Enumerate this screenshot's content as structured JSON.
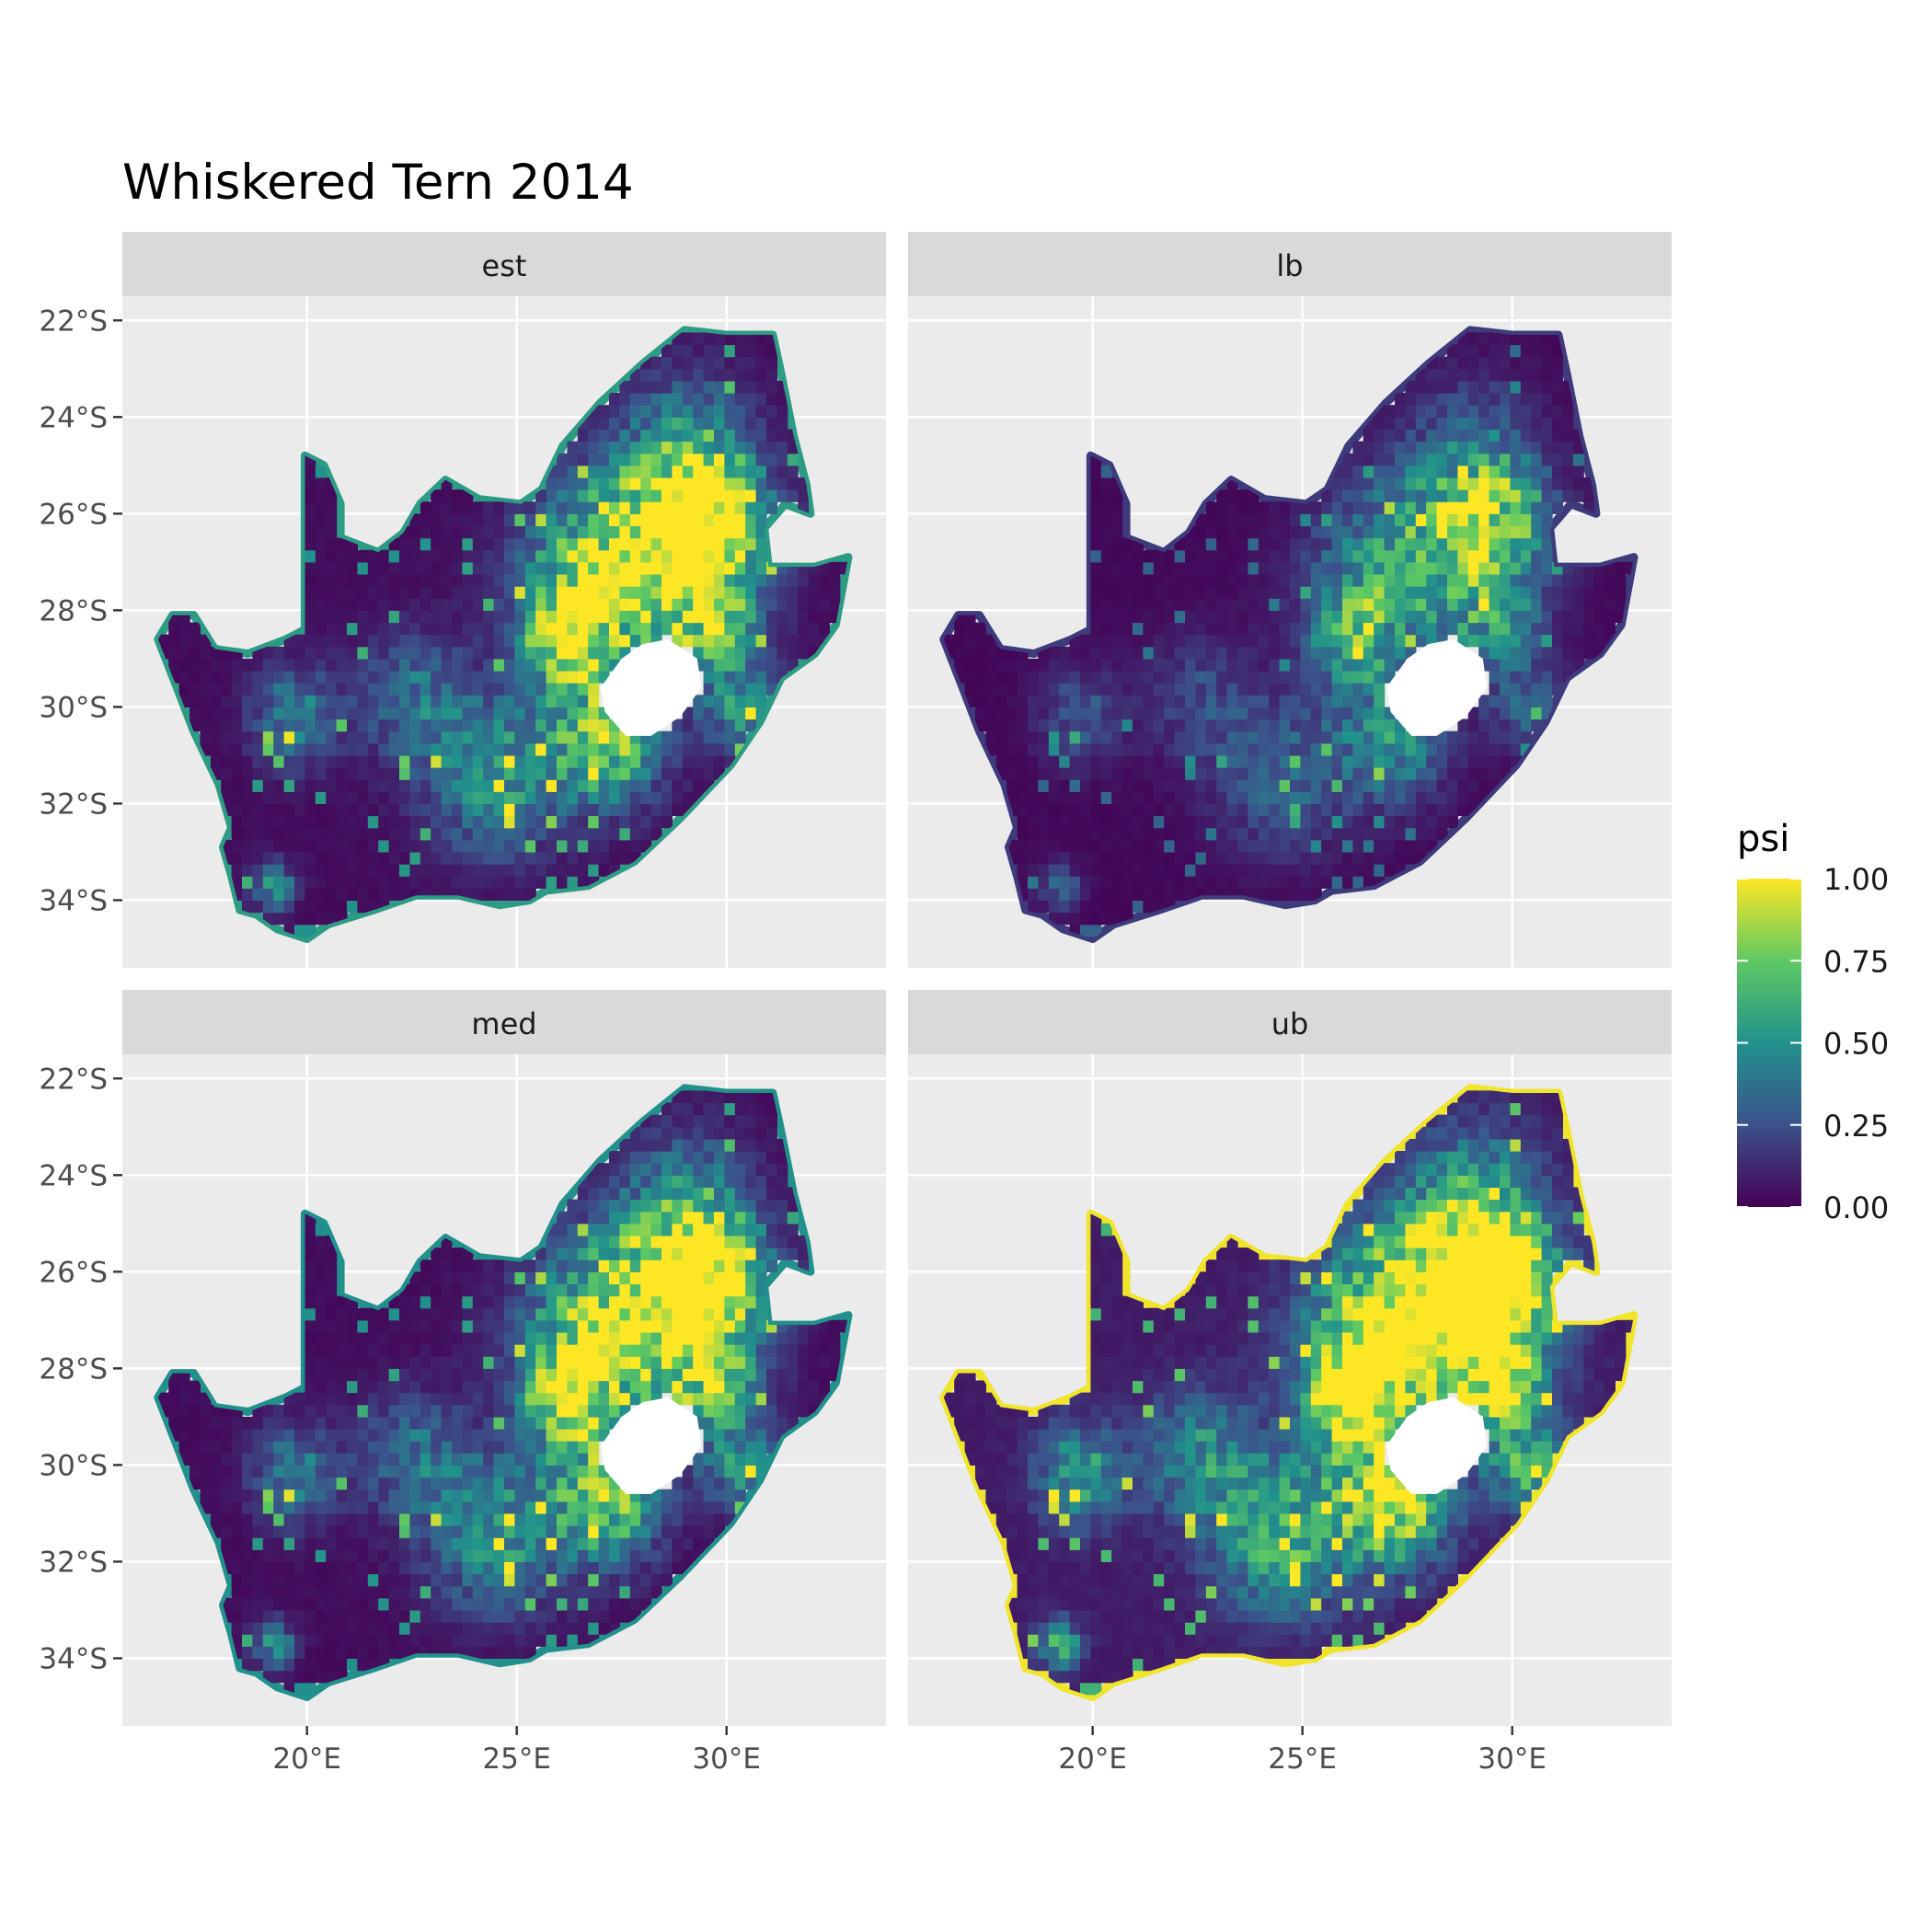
{
  "title": "Whiskered Tern 2014",
  "panels": [
    {
      "label": "est",
      "layer": "est"
    },
    {
      "label": "lb",
      "layer": "lb"
    },
    {
      "label": "med",
      "layer": "med"
    },
    {
      "label": "ub",
      "layer": "ub"
    }
  ],
  "axes": {
    "x": {
      "ticks": [
        20,
        25,
        30
      ],
      "tick_labels": [
        "20°E",
        "25°E",
        "30°E"
      ],
      "range": [
        15.6,
        33.8
      ]
    },
    "y": {
      "ticks": [
        -22,
        -24,
        -26,
        -28,
        -30,
        -32,
        -34
      ],
      "tick_labels": [
        "22°S",
        "24°S",
        "26°S",
        "28°S",
        "30°S",
        "32°S",
        "34°S"
      ],
      "range": [
        -35.4,
        -21.5
      ]
    }
  },
  "legend": {
    "title": "psi",
    "ticks": [
      1.0,
      0.75,
      0.5,
      0.25,
      0.0
    ],
    "tick_labels": [
      "1.00",
      "0.75",
      "0.50",
      "0.25",
      "0.00"
    ],
    "colors": [
      "#440154",
      "#3b528b",
      "#21918c",
      "#5ec962",
      "#fde725"
    ],
    "position": "right"
  },
  "colors": {
    "panel_bg": "#ebebeb",
    "strip_bg": "#d9d9d9",
    "gridline": "#ffffff",
    "tick_text": "#4d4d4d",
    "lesotho_hole": "#ffffff"
  },
  "chart_data": {
    "type": "heatmap",
    "title": "Whiskered Tern 2014",
    "subtitle": "",
    "xlabel": "",
    "ylabel": "",
    "facets": [
      "est",
      "lb",
      "med",
      "ub"
    ],
    "value_name": "psi",
    "value_range": [
      0,
      1
    ],
    "outline_lonlat": [
      [
        16.45,
        -28.6
      ],
      [
        16.8,
        -28.1
      ],
      [
        17.3,
        -28.1
      ],
      [
        17.8,
        -28.8
      ],
      [
        18.6,
        -28.9
      ],
      [
        19.5,
        -28.6
      ],
      [
        19.95,
        -28.4
      ],
      [
        19.95,
        -24.8
      ],
      [
        20.4,
        -25.0
      ],
      [
        20.8,
        -25.8
      ],
      [
        20.8,
        -26.5
      ],
      [
        21.7,
        -26.8
      ],
      [
        22.3,
        -26.4
      ],
      [
        22.7,
        -25.8
      ],
      [
        23.3,
        -25.3
      ],
      [
        24.1,
        -25.7
      ],
      [
        25.1,
        -25.8
      ],
      [
        25.6,
        -25.5
      ],
      [
        26.1,
        -24.6
      ],
      [
        27.0,
        -23.7
      ],
      [
        28.0,
        -22.9
      ],
      [
        29.0,
        -22.2
      ],
      [
        30.0,
        -22.3
      ],
      [
        31.1,
        -22.3
      ],
      [
        31.3,
        -23.1
      ],
      [
        31.6,
        -24.4
      ],
      [
        31.9,
        -25.4
      ],
      [
        32.0,
        -26.0
      ],
      [
        31.4,
        -25.8
      ],
      [
        30.9,
        -26.3
      ],
      [
        31.0,
        -27.1
      ],
      [
        32.1,
        -27.1
      ],
      [
        32.9,
        -26.9
      ],
      [
        32.6,
        -28.3
      ],
      [
        32.1,
        -28.9
      ],
      [
        31.3,
        -29.4
      ],
      [
        30.8,
        -30.3
      ],
      [
        30.1,
        -31.2
      ],
      [
        28.9,
        -32.3
      ],
      [
        27.8,
        -33.2
      ],
      [
        26.7,
        -33.7
      ],
      [
        25.7,
        -33.8
      ],
      [
        25.3,
        -34.0
      ],
      [
        24.6,
        -34.1
      ],
      [
        23.6,
        -33.9
      ],
      [
        22.6,
        -33.9
      ],
      [
        21.6,
        -34.2
      ],
      [
        20.5,
        -34.5
      ],
      [
        20.0,
        -34.8
      ],
      [
        19.3,
        -34.6
      ],
      [
        18.8,
        -34.3
      ],
      [
        18.4,
        -34.2
      ],
      [
        18.2,
        -33.5
      ],
      [
        18.0,
        -32.9
      ],
      [
        18.2,
        -32.5
      ],
      [
        17.9,
        -31.6
      ],
      [
        17.3,
        -30.5
      ],
      [
        16.9,
        -29.6
      ],
      [
        16.45,
        -28.6
      ]
    ],
    "lesotho_lonlat": [
      [
        27.0,
        -29.6
      ],
      [
        27.5,
        -29.0
      ],
      [
        28.0,
        -28.7
      ],
      [
        28.6,
        -28.6
      ],
      [
        29.3,
        -29.0
      ],
      [
        29.4,
        -29.6
      ],
      [
        28.9,
        -30.2
      ],
      [
        28.2,
        -30.6
      ],
      [
        27.6,
        -30.6
      ],
      [
        27.1,
        -30.1
      ],
      [
        27.0,
        -29.6
      ]
    ],
    "hotspots": [
      {
        "lon": 28.6,
        "lat": -26.4,
        "r": 1.9,
        "v": 0.82
      },
      {
        "lon": 29.7,
        "lat": -26.1,
        "r": 1.2,
        "v": 0.92
      },
      {
        "lon": 26.2,
        "lat": -28.6,
        "r": 0.9,
        "v": 0.88
      },
      {
        "lon": 27.1,
        "lat": -30.7,
        "r": 1.3,
        "v": 0.8
      },
      {
        "lon": 26.8,
        "lat": -27.5,
        "r": 1.8,
        "v": 0.68
      },
      {
        "lon": 29.6,
        "lat": -28.3,
        "r": 1.2,
        "v": 0.6
      },
      {
        "lon": 24.5,
        "lat": -31.4,
        "r": 1.6,
        "v": 0.52
      },
      {
        "lon": 19.7,
        "lat": -30.2,
        "r": 1.0,
        "v": 0.45
      },
      {
        "lon": 22.5,
        "lat": -29.8,
        "r": 1.3,
        "v": 0.35
      },
      {
        "lon": 29.2,
        "lat": -24.4,
        "r": 1.4,
        "v": 0.32
      },
      {
        "lon": 30.4,
        "lat": -30.1,
        "r": 0.9,
        "v": 0.45
      },
      {
        "lon": 19.2,
        "lat": -33.7,
        "r": 0.5,
        "v": 0.5
      }
    ],
    "facet_adjust": {
      "est": {
        "scale": 1.0,
        "offset": 0.0,
        "coast": 0.55
      },
      "lb": {
        "scale": 0.62,
        "offset": 0.0,
        "coast": 0.18
      },
      "med": {
        "scale": 0.98,
        "offset": 0.0,
        "coast": 0.5
      },
      "ub": {
        "scale": 1.08,
        "offset": 0.12,
        "coast": 0.98
      }
    }
  }
}
